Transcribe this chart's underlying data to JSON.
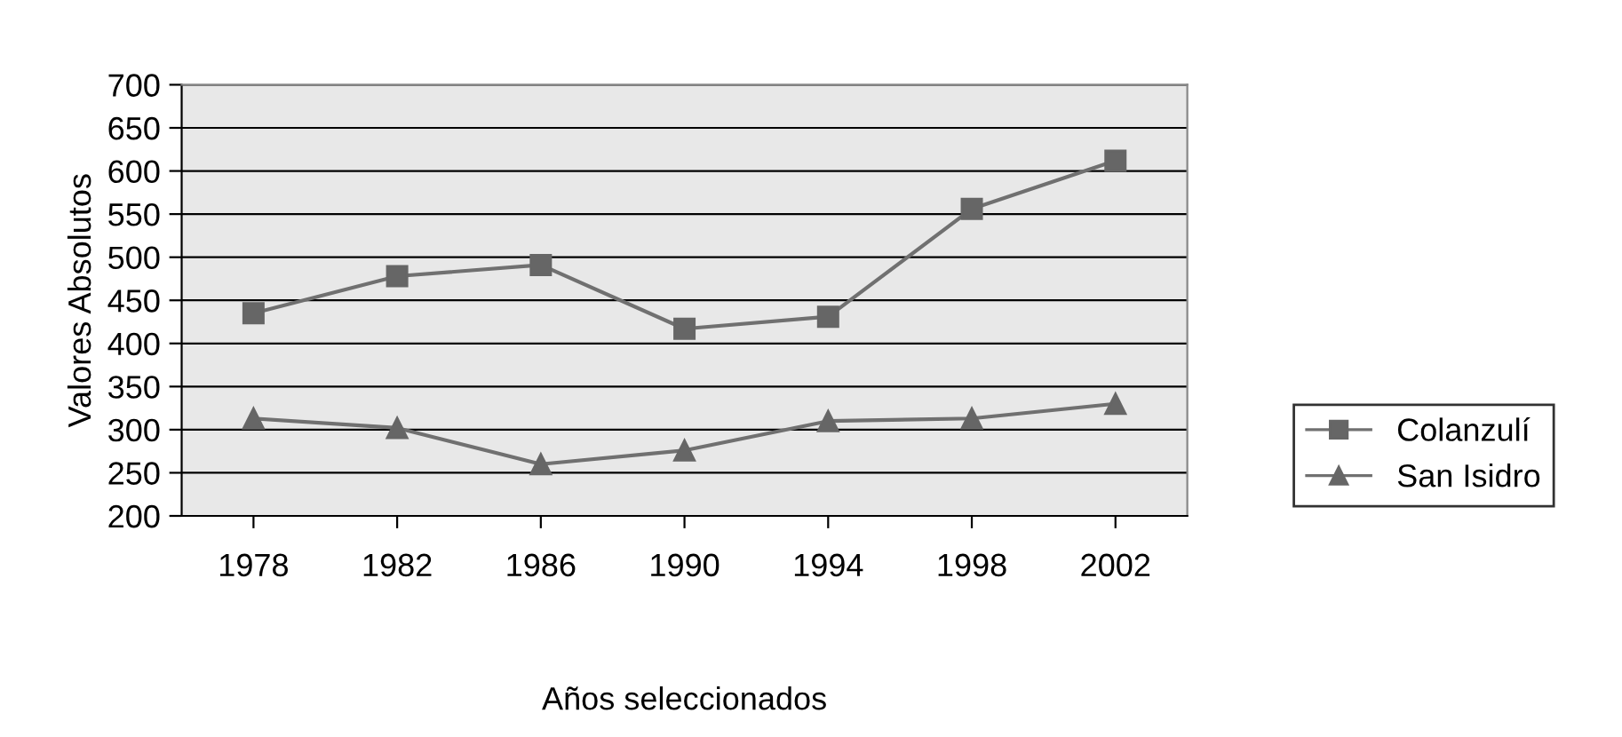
{
  "chart_data": {
    "type": "line",
    "xlabel": "Años seleccionados",
    "ylabel": "Valores Absolutos",
    "categories": [
      "1978",
      "1982",
      "1986",
      "1990",
      "1994",
      "1998",
      "2002"
    ],
    "series": [
      {
        "name": "Colanzulí",
        "color": "#666666",
        "marker": "square",
        "values": [
          435,
          478,
          491,
          417,
          431,
          556,
          612
        ]
      },
      {
        "name": "San Isidro",
        "color": "#666666",
        "marker": "triangle",
        "values": [
          313,
          302,
          260,
          276,
          310,
          313,
          330
        ]
      }
    ],
    "ylim": [
      200,
      700
    ],
    "yticks": [
      200,
      250,
      300,
      350,
      400,
      450,
      500,
      550,
      600,
      650,
      700
    ],
    "grid": "y",
    "legend": "right"
  }
}
